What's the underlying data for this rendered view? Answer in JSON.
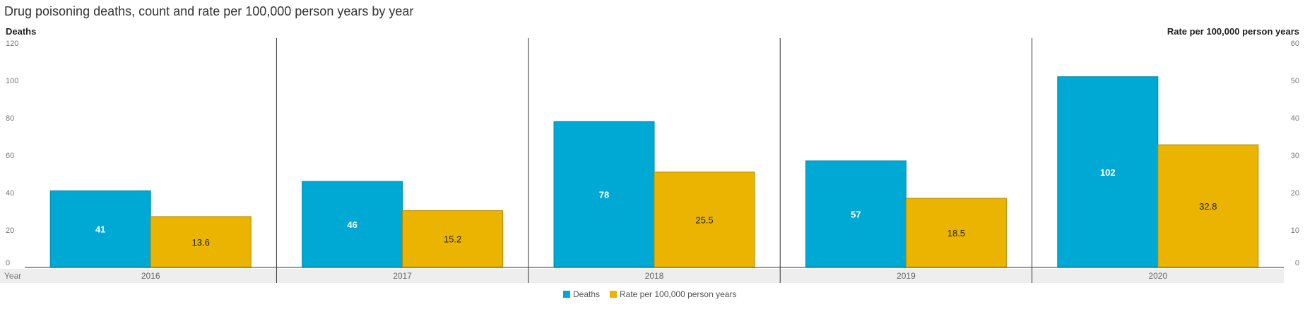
{
  "chart_data": {
    "type": "bar",
    "title": "Drug poisoning deaths, count and rate per 100,000 person years by year",
    "xlabel": "Year",
    "ylabel": "Deaths",
    "y2label": "Rate per 100,000 person years",
    "categories": [
      "2016",
      "2017",
      "2018",
      "2019",
      "2020"
    ],
    "ylim": [
      0,
      120
    ],
    "y2lim": [
      0,
      60
    ],
    "yticks": [
      "0",
      "20",
      "40",
      "60",
      "80",
      "100",
      "120"
    ],
    "y2ticks": [
      "0",
      "10",
      "20",
      "30",
      "40",
      "50",
      "60"
    ],
    "series": [
      {
        "name": "Deaths",
        "axis": "left",
        "color": "#00A8D4",
        "values": [
          41,
          46,
          78,
          57,
          102
        ],
        "labels": [
          "41",
          "46",
          "78",
          "57",
          "102"
        ]
      },
      {
        "name": "Rate per 100,000 person years",
        "axis": "right",
        "color": "#EBB400",
        "values": [
          13.6,
          15.2,
          25.5,
          18.5,
          32.8
        ],
        "labels": [
          "13.6",
          "15.2",
          "25.5",
          "18.5",
          "32.8"
        ]
      }
    ],
    "grid": false,
    "legend": "bottom-center"
  }
}
